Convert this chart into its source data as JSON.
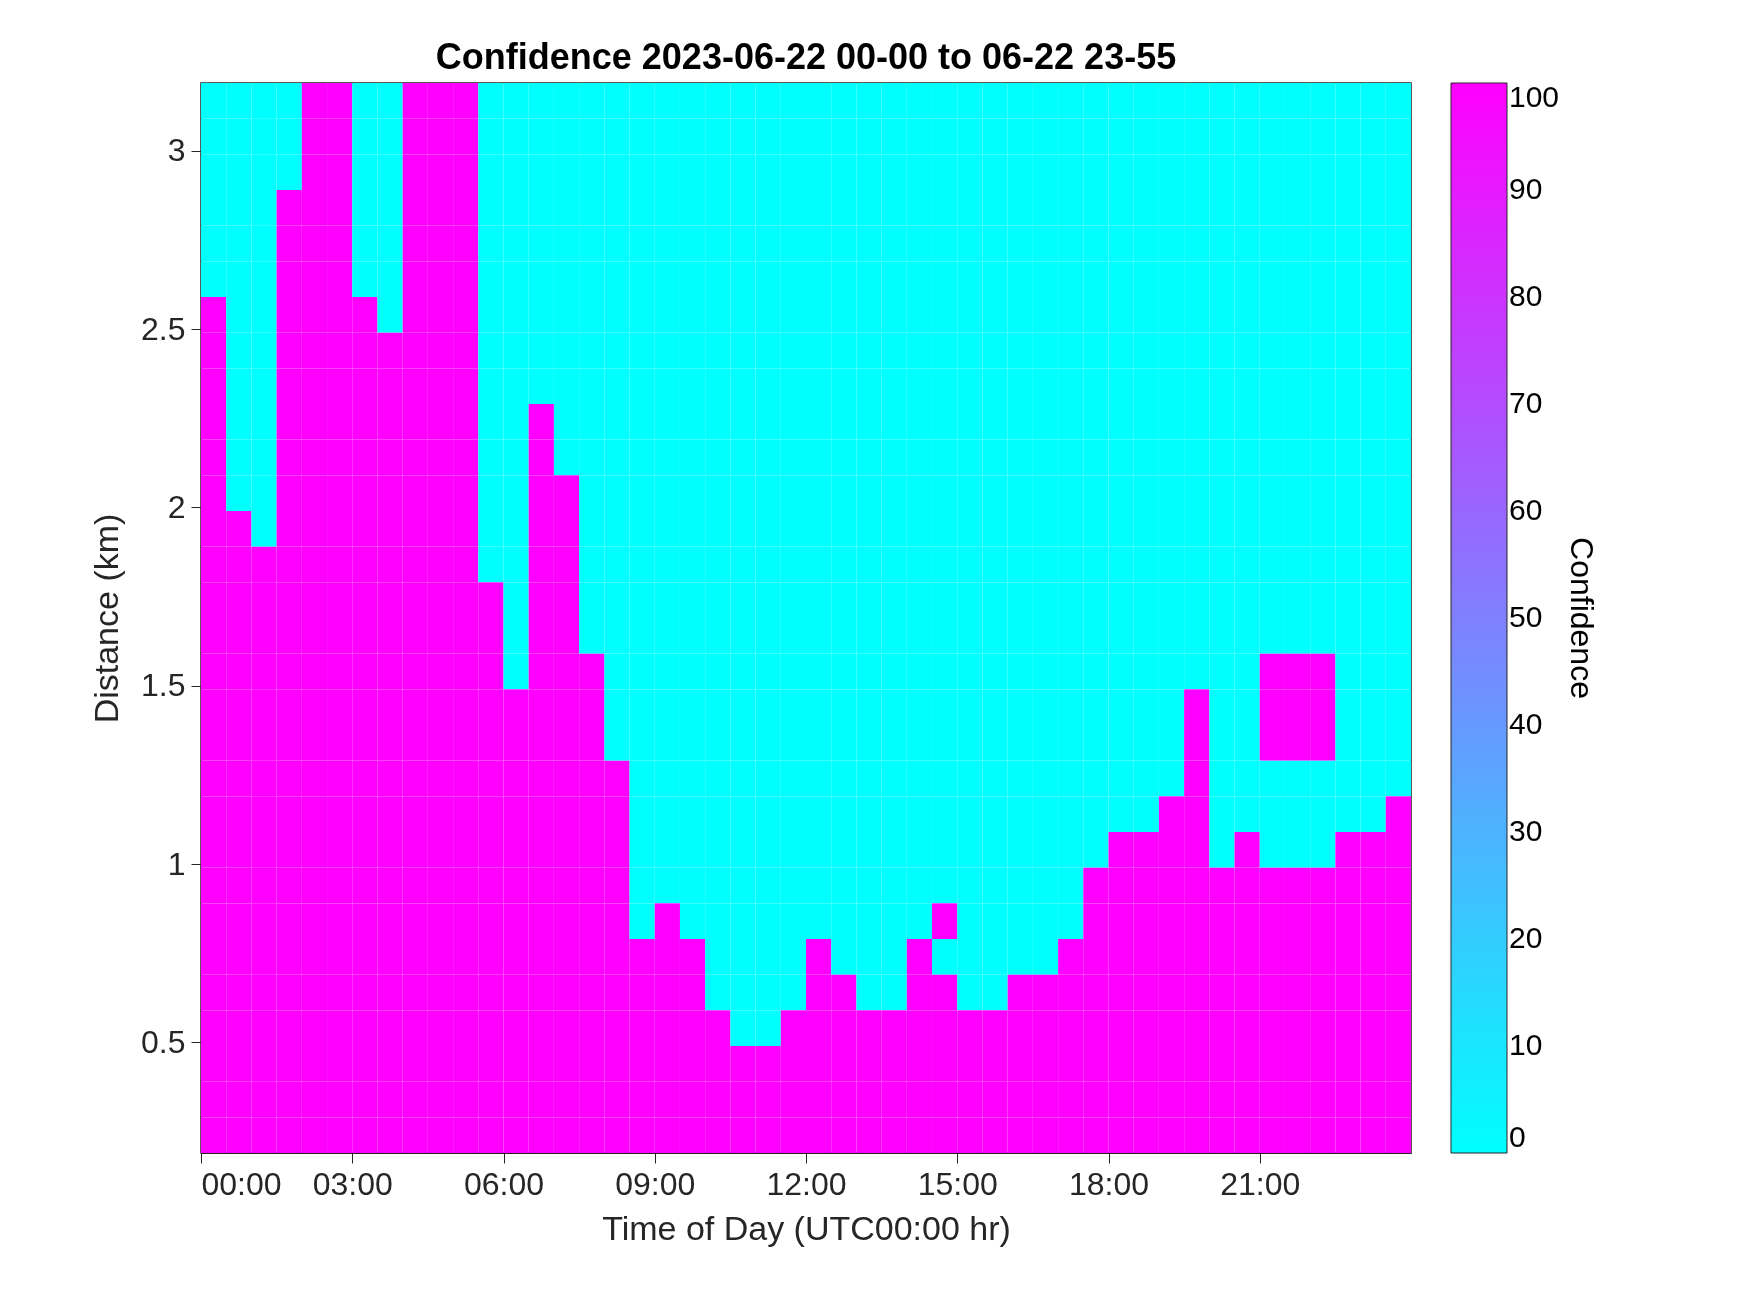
{
  "chart_data": {
    "type": "heatmap",
    "title": "Confidence 2023-06-22 00-00 to 06-22 23-55",
    "xlabel": "Time of Day (UTC00:00 hr)",
    "ylabel": "Distance (km)",
    "clabel": "Confidence",
    "xlim": [
      0,
      24
    ],
    "ylim": [
      0.19,
      3.19
    ],
    "xticks": [
      {
        "value": 0,
        "label": "00:00"
      },
      {
        "value": 3,
        "label": "03:00"
      },
      {
        "value": 6,
        "label": "06:00"
      },
      {
        "value": 9,
        "label": "09:00"
      },
      {
        "value": 12,
        "label": "12:00"
      },
      {
        "value": 15,
        "label": "15:00"
      },
      {
        "value": 18,
        "label": "18:00"
      },
      {
        "value": 21,
        "label": "21:00"
      }
    ],
    "yticks": [
      0.5,
      1,
      1.5,
      2,
      2.5,
      3
    ],
    "clim": [
      0,
      100
    ],
    "cticks": [
      0,
      10,
      20,
      30,
      40,
      50,
      60,
      70,
      80,
      90,
      100
    ],
    "colors": [
      "#00ffff",
      "#ff00ff"
    ],
    "cells": [
      [
        0,
        0,
        0,
        0,
        100,
        100,
        0,
        0,
        100,
        100,
        100,
        0,
        0,
        0,
        0,
        0,
        0,
        0,
        0,
        0,
        0,
        0,
        0,
        0,
        0,
        0,
        0,
        0,
        0,
        0,
        0,
        0,
        0,
        0,
        0,
        0,
        0,
        0,
        0,
        0,
        0,
        0,
        0,
        0,
        0,
        0,
        0,
        0
      ],
      [
        0,
        0,
        0,
        0,
        100,
        100,
        0,
        0,
        100,
        100,
        100,
        0,
        0,
        0,
        0,
        0,
        0,
        0,
        0,
        0,
        0,
        0,
        0,
        0,
        0,
        0,
        0,
        0,
        0,
        0,
        0,
        0,
        0,
        0,
        0,
        0,
        0,
        0,
        0,
        0,
        0,
        0,
        0,
        0,
        0,
        0,
        0,
        0
      ],
      [
        0,
        0,
        0,
        0,
        100,
        100,
        0,
        0,
        100,
        100,
        100,
        0,
        0,
        0,
        0,
        0,
        0,
        0,
        0,
        0,
        0,
        0,
        0,
        0,
        0,
        0,
        0,
        0,
        0,
        0,
        0,
        0,
        0,
        0,
        0,
        0,
        0,
        0,
        0,
        0,
        0,
        0,
        0,
        0,
        0,
        0,
        0,
        0
      ],
      [
        0,
        0,
        0,
        100,
        100,
        100,
        0,
        0,
        100,
        100,
        100,
        0,
        0,
        0,
        0,
        0,
        0,
        0,
        0,
        0,
        0,
        0,
        0,
        0,
        0,
        0,
        0,
        0,
        0,
        0,
        0,
        0,
        0,
        0,
        0,
        0,
        0,
        0,
        0,
        0,
        0,
        0,
        0,
        0,
        0,
        0,
        0,
        0
      ],
      [
        0,
        0,
        0,
        100,
        100,
        100,
        0,
        0,
        100,
        100,
        100,
        0,
        0,
        0,
        0,
        0,
        0,
        0,
        0,
        0,
        0,
        0,
        0,
        0,
        0,
        0,
        0,
        0,
        0,
        0,
        0,
        0,
        0,
        0,
        0,
        0,
        0,
        0,
        0,
        0,
        0,
        0,
        0,
        0,
        0,
        0,
        0,
        0
      ],
      [
        0,
        0,
        0,
        100,
        100,
        100,
        0,
        0,
        100,
        100,
        100,
        0,
        0,
        0,
        0,
        0,
        0,
        0,
        0,
        0,
        0,
        0,
        0,
        0,
        0,
        0,
        0,
        0,
        0,
        0,
        0,
        0,
        0,
        0,
        0,
        0,
        0,
        0,
        0,
        0,
        0,
        0,
        0,
        0,
        0,
        0,
        0,
        0
      ],
      [
        100,
        0,
        0,
        100,
        100,
        100,
        100,
        0,
        100,
        100,
        100,
        0,
        0,
        0,
        0,
        0,
        0,
        0,
        0,
        0,
        0,
        0,
        0,
        0,
        0,
        0,
        0,
        0,
        0,
        0,
        0,
        0,
        0,
        0,
        0,
        0,
        0,
        0,
        0,
        0,
        0,
        0,
        0,
        0,
        0,
        0,
        0,
        0
      ],
      [
        100,
        0,
        0,
        100,
        100,
        100,
        100,
        100,
        100,
        100,
        100,
        0,
        0,
        0,
        0,
        0,
        0,
        0,
        0,
        0,
        0,
        0,
        0,
        0,
        0,
        0,
        0,
        0,
        0,
        0,
        0,
        0,
        0,
        0,
        0,
        0,
        0,
        0,
        0,
        0,
        0,
        0,
        0,
        0,
        0,
        0,
        0,
        0
      ],
      [
        100,
        0,
        0,
        100,
        100,
        100,
        100,
        100,
        100,
        100,
        100,
        0,
        0,
        0,
        0,
        0,
        0,
        0,
        0,
        0,
        0,
        0,
        0,
        0,
        0,
        0,
        0,
        0,
        0,
        0,
        0,
        0,
        0,
        0,
        0,
        0,
        0,
        0,
        0,
        0,
        0,
        0,
        0,
        0,
        0,
        0,
        0,
        0
      ],
      [
        100,
        0,
        0,
        100,
        100,
        100,
        100,
        100,
        100,
        100,
        100,
        0,
        0,
        100,
        0,
        0,
        0,
        0,
        0,
        0,
        0,
        0,
        0,
        0,
        0,
        0,
        0,
        0,
        0,
        0,
        0,
        0,
        0,
        0,
        0,
        0,
        0,
        0,
        0,
        0,
        0,
        0,
        0,
        0,
        0,
        0,
        0,
        0
      ],
      [
        100,
        0,
        0,
        100,
        100,
        100,
        100,
        100,
        100,
        100,
        100,
        0,
        0,
        100,
        0,
        0,
        0,
        0,
        0,
        0,
        0,
        0,
        0,
        0,
        0,
        0,
        0,
        0,
        0,
        0,
        0,
        0,
        0,
        0,
        0,
        0,
        0,
        0,
        0,
        0,
        0,
        0,
        0,
        0,
        0,
        0,
        0,
        0
      ],
      [
        100,
        0,
        0,
        100,
        100,
        100,
        100,
        100,
        100,
        100,
        100,
        0,
        0,
        100,
        100,
        0,
        0,
        0,
        0,
        0,
        0,
        0,
        0,
        0,
        0,
        0,
        0,
        0,
        0,
        0,
        0,
        0,
        0,
        0,
        0,
        0,
        0,
        0,
        0,
        0,
        0,
        0,
        0,
        0,
        0,
        0,
        0,
        0
      ],
      [
        100,
        100,
        0,
        100,
        100,
        100,
        100,
        100,
        100,
        100,
        100,
        0,
        0,
        100,
        100,
        0,
        0,
        0,
        0,
        0,
        0,
        0,
        0,
        0,
        0,
        0,
        0,
        0,
        0,
        0,
        0,
        0,
        0,
        0,
        0,
        0,
        0,
        0,
        0,
        0,
        0,
        0,
        0,
        0,
        0,
        0,
        0,
        0
      ],
      [
        100,
        100,
        100,
        100,
        100,
        100,
        100,
        100,
        100,
        100,
        100,
        0,
        0,
        100,
        100,
        0,
        0,
        0,
        0,
        0,
        0,
        0,
        0,
        0,
        0,
        0,
        0,
        0,
        0,
        0,
        0,
        0,
        0,
        0,
        0,
        0,
        0,
        0,
        0,
        0,
        0,
        0,
        0,
        0,
        0,
        0,
        0,
        0
      ],
      [
        100,
        100,
        100,
        100,
        100,
        100,
        100,
        100,
        100,
        100,
        100,
        100,
        0,
        100,
        100,
        0,
        0,
        0,
        0,
        0,
        0,
        0,
        0,
        0,
        0,
        0,
        0,
        0,
        0,
        0,
        0,
        0,
        0,
        0,
        0,
        0,
        0,
        0,
        0,
        0,
        0,
        0,
        0,
        0,
        0,
        0,
        0,
        0
      ],
      [
        100,
        100,
        100,
        100,
        100,
        100,
        100,
        100,
        100,
        100,
        100,
        100,
        0,
        100,
        100,
        0,
        0,
        0,
        0,
        0,
        0,
        0,
        0,
        0,
        0,
        0,
        0,
        0,
        0,
        0,
        0,
        0,
        0,
        0,
        0,
        0,
        0,
        0,
        0,
        0,
        0,
        0,
        0,
        0,
        0,
        0,
        0,
        0
      ],
      [
        100,
        100,
        100,
        100,
        100,
        100,
        100,
        100,
        100,
        100,
        100,
        100,
        0,
        100,
        100,
        100,
        0,
        0,
        0,
        0,
        0,
        0,
        0,
        0,
        0,
        0,
        0,
        0,
        0,
        0,
        0,
        0,
        0,
        0,
        0,
        0,
        0,
        0,
        0,
        0,
        0,
        0,
        100,
        100,
        100,
        0,
        0,
        0
      ],
      [
        100,
        100,
        100,
        100,
        100,
        100,
        100,
        100,
        100,
        100,
        100,
        100,
        100,
        100,
        100,
        100,
        0,
        0,
        0,
        0,
        0,
        0,
        0,
        0,
        0,
        0,
        0,
        0,
        0,
        0,
        0,
        0,
        0,
        0,
        0,
        0,
        0,
        0,
        0,
        100,
        0,
        0,
        100,
        100,
        100,
        0,
        0,
        0
      ],
      [
        100,
        100,
        100,
        100,
        100,
        100,
        100,
        100,
        100,
        100,
        100,
        100,
        100,
        100,
        100,
        100,
        0,
        0,
        0,
        0,
        0,
        0,
        0,
        0,
        0,
        0,
        0,
        0,
        0,
        0,
        0,
        0,
        0,
        0,
        0,
        0,
        0,
        0,
        0,
        100,
        0,
        0,
        100,
        100,
        100,
        0,
        0,
        0
      ],
      [
        100,
        100,
        100,
        100,
        100,
        100,
        100,
        100,
        100,
        100,
        100,
        100,
        100,
        100,
        100,
        100,
        100,
        0,
        0,
        0,
        0,
        0,
        0,
        0,
        0,
        0,
        0,
        0,
        0,
        0,
        0,
        0,
        0,
        0,
        0,
        0,
        0,
        0,
        0,
        100,
        0,
        0,
        0,
        0,
        0,
        0,
        0,
        0
      ],
      [
        100,
        100,
        100,
        100,
        100,
        100,
        100,
        100,
        100,
        100,
        100,
        100,
        100,
        100,
        100,
        100,
        100,
        0,
        0,
        0,
        0,
        0,
        0,
        0,
        0,
        0,
        0,
        0,
        0,
        0,
        0,
        0,
        0,
        0,
        0,
        0,
        0,
        0,
        100,
        100,
        0,
        0,
        0,
        0,
        0,
        0,
        0,
        100
      ],
      [
        100,
        100,
        100,
        100,
        100,
        100,
        100,
        100,
        100,
        100,
        100,
        100,
        100,
        100,
        100,
        100,
        100,
        0,
        0,
        0,
        0,
        0,
        0,
        0,
        0,
        0,
        0,
        0,
        0,
        0,
        0,
        0,
        0,
        0,
        0,
        0,
        100,
        100,
        100,
        100,
        0,
        100,
        0,
        0,
        0,
        100,
        100,
        100
      ],
      [
        100,
        100,
        100,
        100,
        100,
        100,
        100,
        100,
        100,
        100,
        100,
        100,
        100,
        100,
        100,
        100,
        100,
        0,
        0,
        0,
        0,
        0,
        0,
        0,
        0,
        0,
        0,
        0,
        0,
        0,
        0,
        0,
        0,
        0,
        0,
        100,
        100,
        100,
        100,
        100,
        100,
        100,
        100,
        100,
        100,
        100,
        100,
        100
      ],
      [
        100,
        100,
        100,
        100,
        100,
        100,
        100,
        100,
        100,
        100,
        100,
        100,
        100,
        100,
        100,
        100,
        100,
        0,
        100,
        0,
        0,
        0,
        0,
        0,
        0,
        0,
        0,
        0,
        0,
        100,
        0,
        0,
        0,
        0,
        0,
        100,
        100,
        100,
        100,
        100,
        100,
        100,
        100,
        100,
        100,
        100,
        100,
        100
      ],
      [
        100,
        100,
        100,
        100,
        100,
        100,
        100,
        100,
        100,
        100,
        100,
        100,
        100,
        100,
        100,
        100,
        100,
        100,
        100,
        100,
        0,
        0,
        0,
        0,
        100,
        0,
        0,
        0,
        100,
        0,
        0,
        0,
        0,
        0,
        100,
        100,
        100,
        100,
        100,
        100,
        100,
        100,
        100,
        100,
        100,
        100,
        100,
        100
      ],
      [
        100,
        100,
        100,
        100,
        100,
        100,
        100,
        100,
        100,
        100,
        100,
        100,
        100,
        100,
        100,
        100,
        100,
        100,
        100,
        100,
        0,
        0,
        0,
        0,
        100,
        100,
        0,
        0,
        100,
        100,
        0,
        0,
        100,
        100,
        100,
        100,
        100,
        100,
        100,
        100,
        100,
        100,
        100,
        100,
        100,
        100,
        100,
        100
      ],
      [
        100,
        100,
        100,
        100,
        100,
        100,
        100,
        100,
        100,
        100,
        100,
        100,
        100,
        100,
        100,
        100,
        100,
        100,
        100,
        100,
        100,
        0,
        0,
        100,
        100,
        100,
        100,
        100,
        100,
        100,
        100,
        100,
        100,
        100,
        100,
        100,
        100,
        100,
        100,
        100,
        100,
        100,
        100,
        100,
        100,
        100,
        100,
        100
      ],
      [
        100,
        100,
        100,
        100,
        100,
        100,
        100,
        100,
        100,
        100,
        100,
        100,
        100,
        100,
        100,
        100,
        100,
        100,
        100,
        100,
        100,
        100,
        100,
        100,
        100,
        100,
        100,
        100,
        100,
        100,
        100,
        100,
        100,
        100,
        100,
        100,
        100,
        100,
        100,
        100,
        100,
        100,
        100,
        100,
        100,
        100,
        100,
        100
      ],
      [
        100,
        100,
        100,
        100,
        100,
        100,
        100,
        100,
        100,
        100,
        100,
        100,
        100,
        100,
        100,
        100,
        100,
        100,
        100,
        100,
        100,
        100,
        100,
        100,
        100,
        100,
        100,
        100,
        100,
        100,
        100,
        100,
        100,
        100,
        100,
        100,
        100,
        100,
        100,
        100,
        100,
        100,
        100,
        100,
        100,
        100,
        100,
        100
      ],
      [
        100,
        100,
        100,
        100,
        100,
        100,
        100,
        100,
        100,
        100,
        100,
        100,
        100,
        100,
        100,
        100,
        100,
        100,
        100,
        100,
        100,
        100,
        100,
        100,
        100,
        100,
        100,
        100,
        100,
        100,
        100,
        100,
        100,
        100,
        100,
        100,
        100,
        100,
        100,
        100,
        100,
        100,
        100,
        100,
        100,
        100,
        100,
        100
      ]
    ]
  }
}
